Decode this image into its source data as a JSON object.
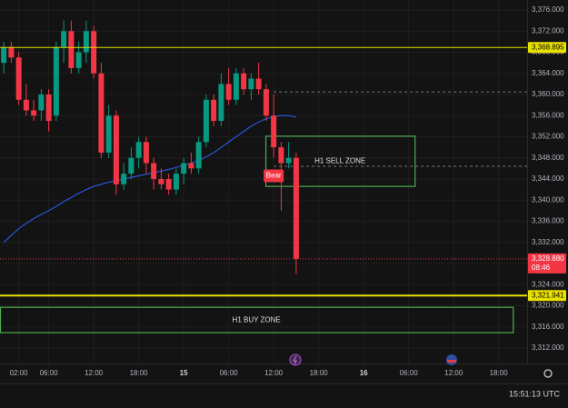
{
  "chart_data": {
    "type": "candlestick",
    "x": [
      -24,
      -23,
      -22,
      -21,
      -20,
      -19,
      -18,
      -17,
      -16,
      -15,
      -14,
      -13,
      -12,
      -11,
      -10,
      -9,
      -8,
      -7,
      -6,
      -5,
      -4,
      -3,
      -2,
      -1,
      0,
      1,
      2,
      3,
      4,
      5,
      6,
      7,
      8,
      9,
      10,
      11,
      12,
      13,
      14,
      15
    ],
    "open": [
      3366,
      3369,
      3367,
      3359,
      3357,
      3357,
      3360,
      3356,
      3369,
      3372,
      3365,
      3368,
      3372,
      3364,
      3349,
      3356,
      3343,
      3345,
      3348,
      3351,
      3347,
      3344,
      3344,
      3342,
      3345,
      3347,
      3346,
      3351,
      3359,
      3355,
      3362,
      3359,
      3364,
      3361,
      3363,
      3361,
      3356,
      3350,
      3347,
      3348
    ],
    "high": [
      3370,
      3370,
      3368,
      3362,
      3359,
      3361,
      3361,
      3370,
      3374,
      3374,
      3370,
      3374,
      3373,
      3366,
      3358,
      3357,
      3347,
      3350,
      3352,
      3352,
      3348,
      3346,
      3345,
      3346,
      3348,
      3349,
      3352,
      3360,
      3360,
      3364,
      3365,
      3365,
      3365,
      3364,
      3366,
      3362,
      3360,
      3351,
      3351,
      3349
    ],
    "low": [
      3364,
      3366,
      3358,
      3356,
      3355,
      3355,
      3353,
      3355,
      3366,
      3364,
      3364,
      3366,
      3363,
      3348,
      3348,
      3341,
      3342,
      3344,
      3346,
      3345,
      3342,
      3342,
      3341,
      3341,
      3343,
      3345,
      3345,
      3350,
      3354,
      3354,
      3358,
      3358,
      3360,
      3359,
      3360,
      3355,
      3348,
      3338,
      3346,
      3326
    ],
    "close": [
      3369,
      3367,
      3359,
      3357,
      3356,
      3360,
      3355,
      3369,
      3372,
      3365,
      3368,
      3372,
      3364,
      3349,
      3356,
      3343,
      3345,
      3348,
      3351,
      3347,
      3344,
      3343,
      3342,
      3345,
      3347,
      3346,
      3351,
      3359,
      3355,
      3362,
      3359,
      3364,
      3361,
      3363,
      3361,
      3356,
      3350,
      3347,
      3348,
      3328.88
    ],
    "up_color": "#089981",
    "down_color": "#f23645",
    "moving_average": {
      "color": "#2962ff",
      "values": [
        3332.0,
        3333.3,
        3334.6,
        3335.6,
        3336.5,
        3337.3,
        3338.0,
        3338.8,
        3339.7,
        3340.5,
        3341.3,
        3342.0,
        3342.6,
        3343.0,
        3343.4,
        3343.7,
        3344.0,
        3344.3,
        3344.6,
        3344.9,
        3345.2,
        3345.5,
        3345.8,
        3346.2,
        3346.6,
        3347.0,
        3347.5,
        3348.2,
        3349.0,
        3350.0,
        3351.0,
        3352.0,
        3353.0,
        3354.0,
        3354.8,
        3355.4,
        3355.8,
        3356.0,
        3356.0,
        3355.7
      ]
    },
    "xlim": [
      -24.5,
      45.8
    ],
    "xticks": [
      {
        "value": -22,
        "label": "02:00"
      },
      {
        "value": -18,
        "label": "06:00"
      },
      {
        "value": -12,
        "label": "12:00"
      },
      {
        "value": -6,
        "label": "18:00"
      },
      {
        "value": 0,
        "label": "15"
      },
      {
        "value": 6,
        "label": "06:00"
      },
      {
        "value": 12,
        "label": "12:00"
      },
      {
        "value": 18,
        "label": "18:00"
      },
      {
        "value": 24,
        "label": "16"
      },
      {
        "value": 30,
        "label": "06:00"
      },
      {
        "value": 36,
        "label": "12:00"
      },
      {
        "value": 42,
        "label": "18:00"
      }
    ],
    "ylim": [
      3309.07,
      3377.89
    ],
    "yticks": [
      {
        "value": 3376,
        "label": "3,376.000"
      },
      {
        "value": 3372,
        "label": "3,372.000"
      },
      {
        "value": 3368,
        "label": "3,368.000"
      },
      {
        "value": 3364,
        "label": "3,364.000"
      },
      {
        "value": 3360,
        "label": "3,360.000"
      },
      {
        "value": 3356,
        "label": "3,356.000"
      },
      {
        "value": 3352,
        "label": "3,352.000"
      },
      {
        "value": 3348,
        "label": "3,348.000"
      },
      {
        "value": 3344,
        "label": "3,344.000"
      },
      {
        "value": 3340,
        "label": "3,340.000"
      },
      {
        "value": 3336,
        "label": "3,336.000"
      },
      {
        "value": 3332,
        "label": "3,332.000"
      },
      {
        "value": 3328,
        "label": "3,328.000"
      },
      {
        "value": 3324,
        "label": "3,324.000"
      },
      {
        "value": 3320,
        "label": "3,320.000"
      },
      {
        "value": 3316,
        "label": "3,316.000"
      },
      {
        "value": 3312,
        "label": "3,312.000"
      }
    ],
    "grid": true,
    "levels": [
      {
        "value": 3368.895,
        "label": "3,368.895",
        "color": "#e8e000",
        "width": 1
      },
      {
        "value": 3321.941,
        "label": "3,321.941",
        "color": "#e8e000",
        "width": 2
      }
    ],
    "dashed_levels": {
      "start": 12,
      "values": [
        3360.5,
        3346.4
      ]
    },
    "last_price": {
      "value": 3328.88,
      "label": "3,328.880",
      "countdown": "08:46",
      "color": "#f23645"
    },
    "zones": [
      {
        "label": "H1 SELL ZONE",
        "top": 3352.1,
        "bottom": 3342.6,
        "x0": 10.9,
        "x1": 30.8,
        "color": "#4caf50"
      },
      {
        "label": "H1 BUY ZONE",
        "top": 3319.7,
        "bottom": 3314.9,
        "x0": -24.5,
        "x1": 43.9,
        "color": "#4caf50"
      }
    ],
    "annotation": {
      "text": "Bear",
      "x": 12,
      "y": 3344.6
    },
    "clock": "15:51:13 UTC"
  }
}
